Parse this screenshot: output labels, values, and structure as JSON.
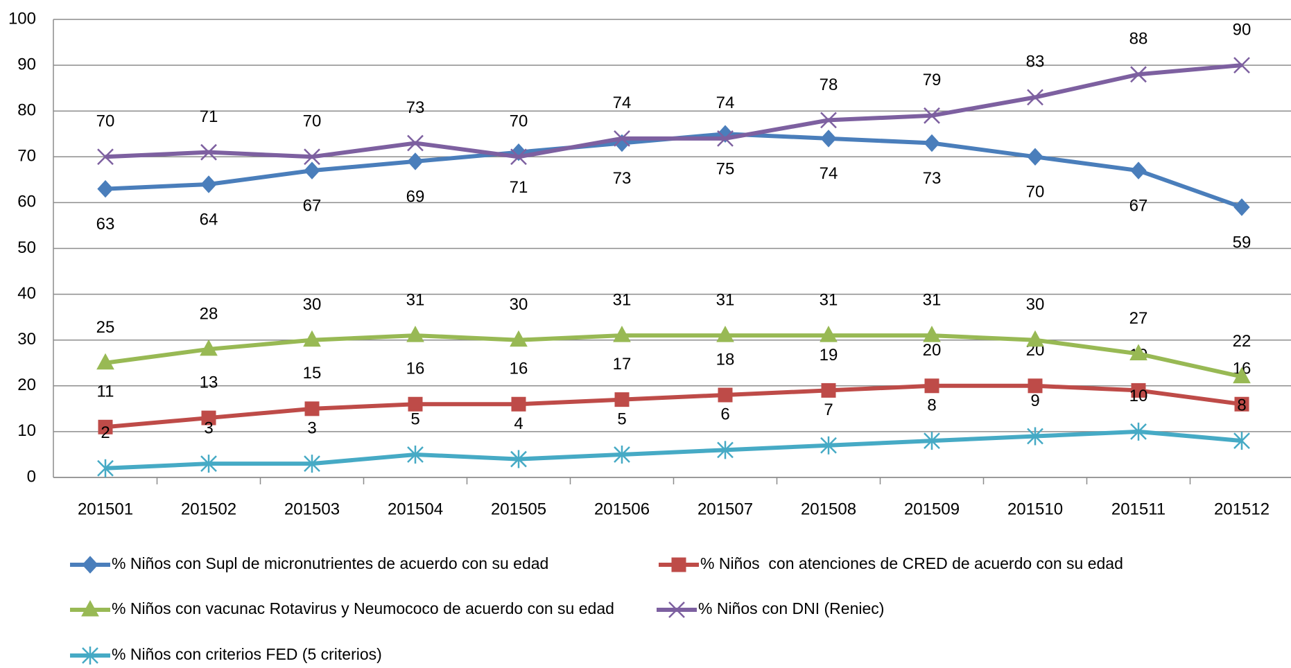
{
  "chart_data": {
    "type": "line",
    "categories": [
      "201501",
      "201502",
      "201503",
      "201504",
      "201505",
      "201506",
      "201507",
      "201508",
      "201509",
      "201510",
      "201511",
      "201512"
    ],
    "series": [
      {
        "name": "% Niños con Supl de micronutrientes de acuerdo con su edad",
        "color": "#4a7ebb",
        "marker": "diamond",
        "label_position": "below",
        "values": [
          63,
          64,
          67,
          69,
          71,
          73,
          75,
          74,
          73,
          70,
          67,
          59
        ]
      },
      {
        "name": "% Niños  con atenciones de CRED de acuerdo con su edad",
        "color": "#be4b48",
        "marker": "square",
        "label_position": "above",
        "values": [
          11,
          13,
          15,
          16,
          16,
          17,
          18,
          19,
          20,
          20,
          19,
          16
        ]
      },
      {
        "name": "% Niños con vacunac Rotavirus y Neumococo de acuerdo con su edad",
        "color": "#98b954",
        "marker": "triangle",
        "label_position": "above",
        "values": [
          25,
          28,
          30,
          31,
          30,
          31,
          31,
          31,
          31,
          30,
          27,
          22
        ]
      },
      {
        "name": "% Niños con DNI (Reniec)",
        "color": "#7d60a0",
        "marker": "x",
        "label_position": "above",
        "values": [
          70,
          71,
          70,
          73,
          70,
          74,
          74,
          78,
          79,
          83,
          88,
          90
        ]
      },
      {
        "name": "% Niños con criterios FED (5 criterios)",
        "color": "#46aac5",
        "marker": "star",
        "label_position": "above",
        "values": [
          2,
          3,
          3,
          5,
          4,
          5,
          6,
          7,
          8,
          9,
          10,
          8
        ]
      }
    ],
    "ylim": [
      0,
      100
    ],
    "yticks": [
      0,
      10,
      20,
      30,
      40,
      50,
      60,
      70,
      80,
      90,
      100
    ],
    "grid": true,
    "legend": "bottom"
  }
}
